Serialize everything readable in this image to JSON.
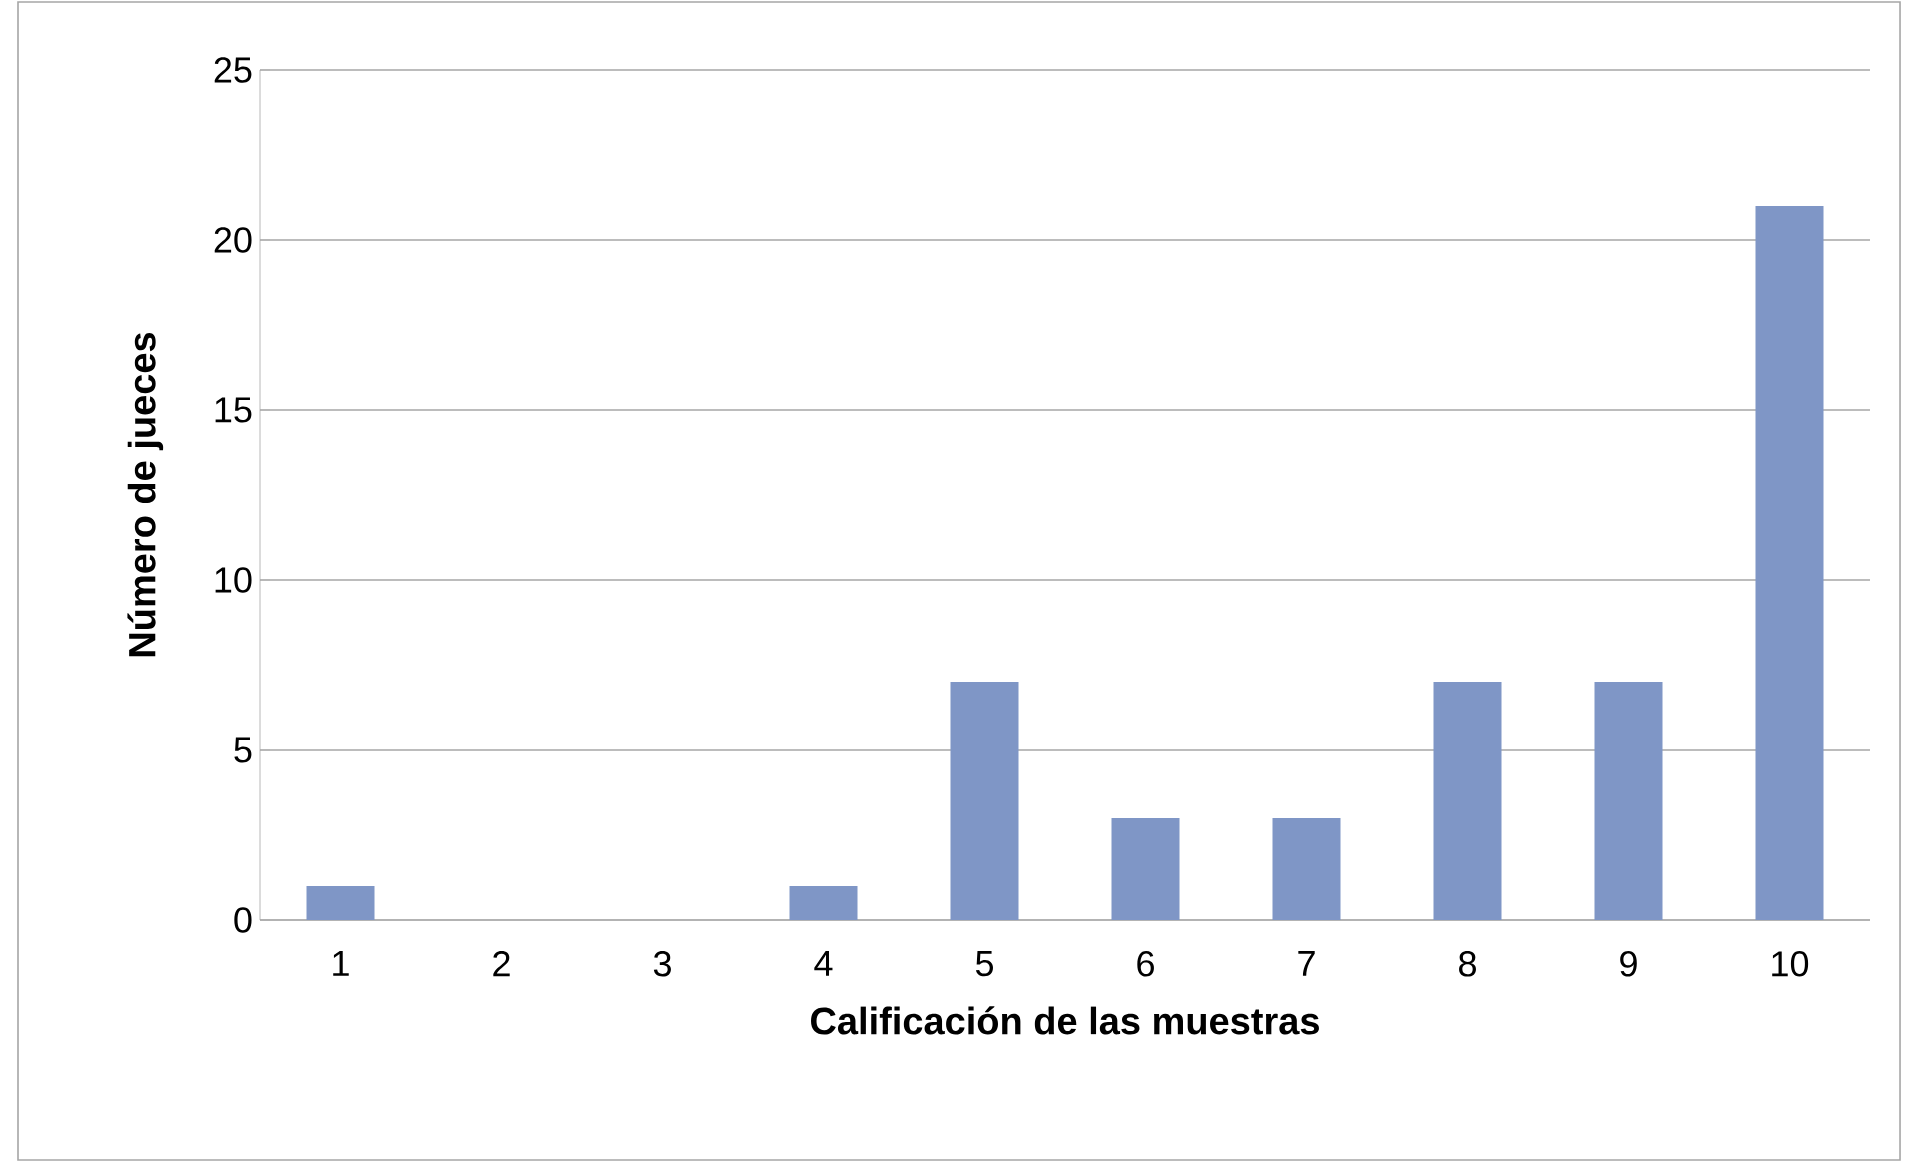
{
  "chart_data": {
    "type": "bar",
    "xlabel": "Calificación de las muestras",
    "ylabel": "Número de jueces",
    "categories": [
      "1",
      "2",
      "3",
      "4",
      "5",
      "6",
      "7",
      "8",
      "9",
      "10"
    ],
    "values": [
      1,
      0,
      0,
      1,
      7,
      3,
      3,
      7,
      7,
      21
    ],
    "color": "#7f96c6",
    "ylim": [
      0,
      25
    ],
    "yticks": [
      0,
      5,
      10,
      15,
      20,
      25
    ],
    "grid": "y"
  }
}
